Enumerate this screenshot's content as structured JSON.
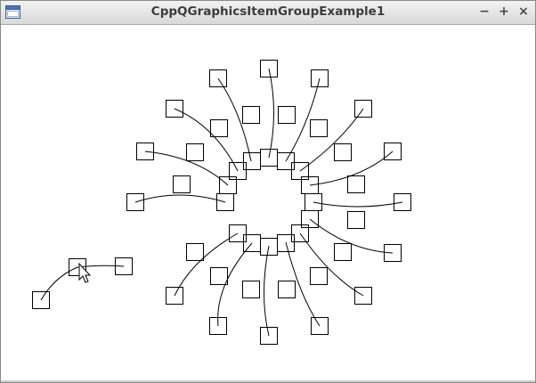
{
  "window": {
    "title": "CppQGraphicsItemGroupExample1",
    "icon": "window-app-icon",
    "buttons": {
      "minimize": "−",
      "maximize": "+",
      "close": "×"
    }
  },
  "scene": {
    "description_items": "graphics scene with draggable square items connected by curved lines",
    "colors": {
      "stroke": "#000000",
      "background": "#ffffff"
    }
  }
}
